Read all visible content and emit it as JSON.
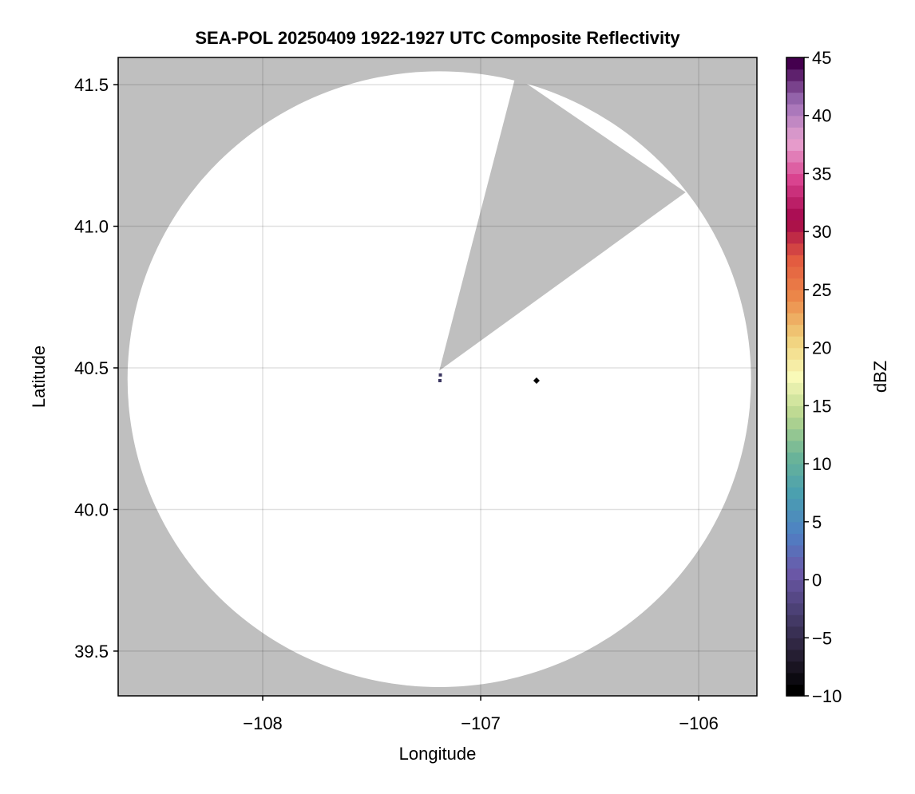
{
  "chart_data": {
    "type": "heatmap",
    "title": "SEA-POL 20250409 1922-1927 UTC Composite Reflectivity",
    "xlabel": "Longitude",
    "ylabel": "Latitude",
    "xlim": [
      -108.663,
      -105.733
    ],
    "ylim": [
      39.342,
      41.596
    ],
    "xticks": [
      -108,
      -107,
      -106
    ],
    "xtick_labels": [
      "−108",
      "−107",
      "−106"
    ],
    "yticks": [
      39.5,
      40.0,
      40.5,
      41.0,
      41.5
    ],
    "ytick_labels": [
      "39.5",
      "40.0",
      "40.5",
      "41.0",
      "41.5"
    ],
    "grid": true,
    "background_color": "#bfbfbf",
    "coverage_color": "#ffffff",
    "radar_coverage": {
      "center": [
        -107.19,
        40.46
      ],
      "radius_lon": 1.43,
      "radius_lat": 1.087
    },
    "blocked_sector": [
      [
        -107.19,
        40.49
      ],
      [
        -106.84,
        41.53
      ],
      [
        -106.06,
        41.12
      ]
    ],
    "echoes": [
      {
        "lon": -107.187,
        "lat": 40.455,
        "color": "#3a3560"
      },
      {
        "lon": -107.185,
        "lat": 40.475,
        "color": "#3a3560"
      }
    ],
    "marker": {
      "lon": -106.744,
      "lat": 40.455,
      "shape": "diamond",
      "color": "#000000"
    },
    "colorbar": {
      "label": "dBZ",
      "range": [
        -10,
        45
      ],
      "ticks": [
        -10,
        -5,
        0,
        5,
        10,
        15,
        20,
        25,
        30,
        35,
        40,
        45
      ],
      "tick_labels": [
        "−10",
        "−5",
        "0",
        "5",
        "10",
        "15",
        "20",
        "25",
        "30",
        "35",
        "40",
        "45"
      ],
      "bins": 55,
      "colormap_anchors": [
        "#000000",
        "#2a2238",
        "#4a3f72",
        "#6b58a8",
        "#4f80c4",
        "#4a9fb0",
        "#6cb597",
        "#b8d68e",
        "#f9fab8",
        "#f0cf7a",
        "#ec8a4a",
        "#e35a40",
        "#a3064a",
        "#d83f8c",
        "#e7a2d0",
        "#9d6fb6",
        "#44004e"
      ]
    }
  }
}
